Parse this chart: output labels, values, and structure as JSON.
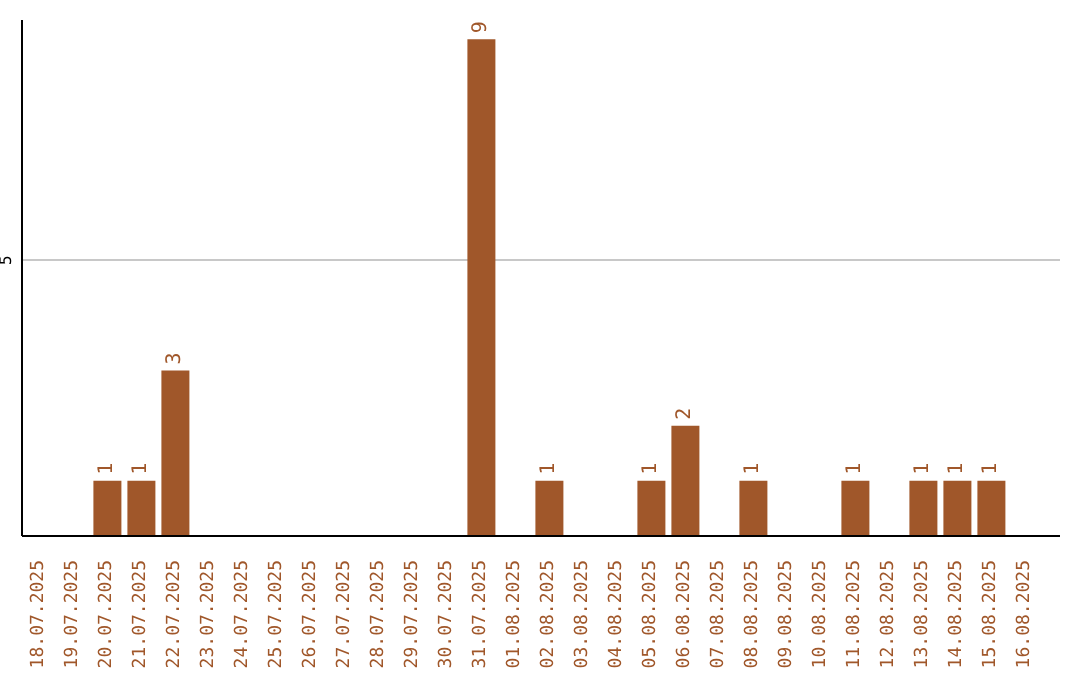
{
  "chart_data": {
    "type": "bar",
    "categories": [
      "18.07.2025",
      "19.07.2025",
      "20.07.2025",
      "21.07.2025",
      "22.07.2025",
      "23.07.2025",
      "24.07.2025",
      "25.07.2025",
      "26.07.2025",
      "27.07.2025",
      "28.07.2025",
      "29.07.2025",
      "30.07.2025",
      "31.07.2025",
      "01.08.2025",
      "02.08.2025",
      "03.08.2025",
      "04.08.2025",
      "05.08.2025",
      "06.08.2025",
      "07.08.2025",
      "08.08.2025",
      "09.08.2025",
      "10.08.2025",
      "11.08.2025",
      "12.08.2025",
      "13.08.2025",
      "14.08.2025",
      "15.08.2025",
      "16.08.2025"
    ],
    "values": [
      null,
      null,
      1,
      1,
      3,
      null,
      null,
      null,
      null,
      null,
      null,
      null,
      null,
      9,
      null,
      1,
      null,
      null,
      1,
      2,
      null,
      1,
      null,
      null,
      1,
      null,
      1,
      1,
      1,
      null
    ],
    "color": "#a0572a",
    "ylim": [
      0,
      9.35
    ],
    "yticks": [
      5
    ],
    "grid": "y",
    "data_labels": true
  }
}
